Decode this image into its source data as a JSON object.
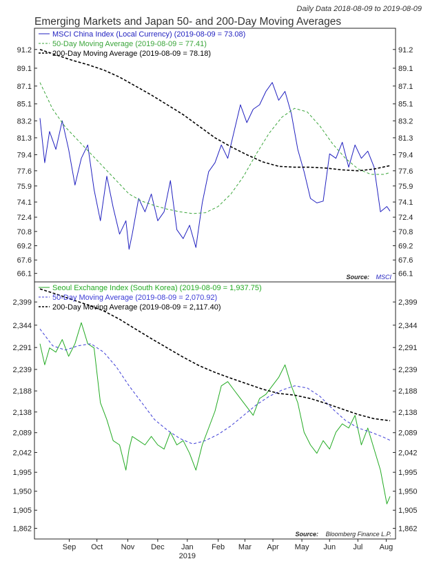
{
  "header": {
    "title": "Emerging Markets and Japan 50- and 200-Day Moving Averages",
    "subtitle": "Daily Data 2018-08-09 to 2019-08-09"
  },
  "colors": {
    "china": "#1f1fbf",
    "korea": "#22aa22",
    "ma50_green": "#3aa53a",
    "ma50_blue": "#3b3bd6",
    "ma200": "#000000",
    "frame": "#222222"
  },
  "x_axis": {
    "months": [
      {
        "label": "Sep",
        "t": 0.092
      },
      {
        "label": "Oct",
        "t": 0.179
      },
      {
        "label": "Nov",
        "t": 0.276
      },
      {
        "label": "Dec",
        "t": 0.37
      },
      {
        "label": "Jan",
        "t": 0.463
      },
      {
        "label": "Feb",
        "t": 0.56
      },
      {
        "label": "Mar",
        "t": 0.644
      },
      {
        "label": "Apr",
        "t": 0.732
      },
      {
        "label": "May",
        "t": 0.823
      },
      {
        "label": "Jun",
        "t": 0.91
      },
      {
        "label": "Jul",
        "t": 0.999
      },
      {
        "label": "Aug",
        "t": 1.088
      }
    ],
    "year_label": "2019"
  },
  "chart_data": [
    {
      "type": "line",
      "title": "MSCI China Index",
      "ylim": [
        65.3,
        93.5
      ],
      "yticks": [
        "91.2",
        "89.1",
        "87.1",
        "85.1",
        "83.2",
        "81.3",
        "79.4",
        "77.6",
        "75.9",
        "74.1",
        "72.4",
        "70.8",
        "69.2",
        "67.6",
        "66.1"
      ],
      "yvalues": [
        91.2,
        89.1,
        87.1,
        85.1,
        83.2,
        81.3,
        79.4,
        77.6,
        75.9,
        74.1,
        72.4,
        70.8,
        69.2,
        67.6,
        66.1
      ],
      "legend": [
        "MSCI China Index (Local Currency) (2019-08-09 = 73.08)",
        "50-Day Moving Average (2019-08-09 = 77.41)",
        "200-Day Moving Average (2019-08-09 = 78.18)"
      ],
      "source_label": "Source:",
      "source_value": "MSCI",
      "series": [
        {
          "name": "MSCI China Index",
          "style": "solid",
          "color": "#1f1fbf",
          "x": [
            0,
            0.015,
            0.03,
            0.05,
            0.07,
            0.09,
            0.11,
            0.13,
            0.15,
            0.17,
            0.19,
            0.21,
            0.23,
            0.25,
            0.27,
            0.28,
            0.29,
            0.31,
            0.33,
            0.35,
            0.37,
            0.39,
            0.41,
            0.43,
            0.45,
            0.47,
            0.49,
            0.51,
            0.53,
            0.55,
            0.57,
            0.59,
            0.61,
            0.63,
            0.65,
            0.67,
            0.69,
            0.71,
            0.73,
            0.75,
            0.77,
            0.79,
            0.81,
            0.83,
            0.85,
            0.87,
            0.89,
            0.91,
            0.93,
            0.95,
            0.97,
            0.99,
            1.01,
            1.03,
            1.05,
            1.07,
            1.09,
            1.1
          ],
          "y": [
            83.5,
            78.5,
            82.0,
            80.0,
            83.2,
            80.0,
            76.0,
            79.0,
            80.5,
            75.5,
            72.0,
            77.0,
            73.5,
            70.5,
            72.0,
            68.8,
            70.5,
            74.5,
            73.0,
            75.0,
            72.0,
            73.0,
            76.5,
            71.0,
            70.0,
            71.5,
            69.0,
            74.0,
            77.5,
            78.5,
            80.5,
            79.0,
            82.0,
            85.0,
            83.0,
            84.5,
            85.0,
            86.5,
            87.5,
            85.5,
            86.5,
            84.0,
            80.0,
            77.5,
            74.5,
            74.0,
            74.2,
            79.5,
            79.0,
            80.8,
            78.0,
            80.5,
            79.0,
            79.8,
            78.0,
            73.0,
            73.6,
            73.08
          ]
        },
        {
          "name": "50-Day Moving Average",
          "style": "dashed",
          "color": "#3aa53a",
          "x": [
            0,
            0.04,
            0.08,
            0.12,
            0.16,
            0.2,
            0.24,
            0.28,
            0.32,
            0.36,
            0.4,
            0.44,
            0.48,
            0.52,
            0.56,
            0.6,
            0.64,
            0.68,
            0.72,
            0.76,
            0.8,
            0.84,
            0.88,
            0.92,
            0.96,
            1.0,
            1.04,
            1.08,
            1.1
          ],
          "y": [
            87.5,
            84.5,
            82.5,
            81.0,
            79.5,
            78.0,
            76.5,
            75.0,
            74.2,
            73.7,
            73.3,
            73.0,
            72.8,
            72.9,
            73.6,
            75.0,
            77.0,
            79.5,
            81.8,
            83.6,
            84.6,
            84.2,
            82.6,
            80.6,
            79.0,
            77.8,
            77.2,
            77.2,
            77.41
          ]
        },
        {
          "name": "200-Day Moving Average",
          "style": "dashed",
          "color": "#000000",
          "x": [
            0,
            0.05,
            0.1,
            0.15,
            0.2,
            0.25,
            0.3,
            0.35,
            0.4,
            0.45,
            0.5,
            0.55,
            0.6,
            0.65,
            0.7,
            0.75,
            0.8,
            0.85,
            0.9,
            0.95,
            1.0,
            1.05,
            1.1
          ],
          "y": [
            91.2,
            90.6,
            90.0,
            89.5,
            88.9,
            88.1,
            87.1,
            86.1,
            85.0,
            83.9,
            82.6,
            81.3,
            80.3,
            79.4,
            78.6,
            78.1,
            78.0,
            78.0,
            77.9,
            77.7,
            77.6,
            77.8,
            78.18
          ]
        }
      ]
    },
    {
      "type": "line",
      "title": "Seoul Exchange Index (South Korea)",
      "ylim": [
        1840,
        2445
      ],
      "yticks": [
        "2,399",
        "2,344",
        "2,291",
        "2,239",
        "2,188",
        "2,138",
        "2,089",
        "2,042",
        "1,995",
        "1,950",
        "1,905",
        "1,862"
      ],
      "yvalues": [
        2399,
        2344,
        2291,
        2239,
        2188,
        2138,
        2089,
        2042,
        1995,
        1950,
        1905,
        1862
      ],
      "legend": [
        "Seoul Exchange Index (South Korea) (2019-08-09 = 1,937.75)",
        "50-Day Moving Average (2019-08-09 = 2,070.92)",
        "200-Day Moving Average (2019-08-09 = 2,117.40)"
      ],
      "source_label": "Source:",
      "source_value": "Bloomberg Finance L.P.",
      "series": [
        {
          "name": "Seoul Exchange Index",
          "style": "solid",
          "color": "#22aa22",
          "x": [
            0,
            0.015,
            0.03,
            0.05,
            0.07,
            0.09,
            0.11,
            0.13,
            0.15,
            0.17,
            0.19,
            0.21,
            0.23,
            0.25,
            0.27,
            0.28,
            0.29,
            0.31,
            0.33,
            0.35,
            0.37,
            0.39,
            0.41,
            0.43,
            0.45,
            0.47,
            0.49,
            0.51,
            0.53,
            0.55,
            0.57,
            0.59,
            0.61,
            0.63,
            0.65,
            0.67,
            0.69,
            0.71,
            0.73,
            0.75,
            0.77,
            0.79,
            0.81,
            0.83,
            0.85,
            0.87,
            0.89,
            0.91,
            0.93,
            0.95,
            0.97,
            0.99,
            1.01,
            1.03,
            1.05,
            1.07,
            1.09,
            1.1
          ],
          "y": [
            2300,
            2250,
            2290,
            2280,
            2310,
            2270,
            2300,
            2350,
            2300,
            2290,
            2160,
            2120,
            2070,
            2060,
            2000,
            2050,
            2080,
            2070,
            2060,
            2080,
            2060,
            2050,
            2090,
            2060,
            2070,
            2040,
            2000,
            2060,
            2100,
            2140,
            2200,
            2210,
            2190,
            2170,
            2150,
            2130,
            2170,
            2180,
            2200,
            2220,
            2250,
            2200,
            2160,
            2090,
            2060,
            2040,
            2070,
            2050,
            2090,
            2110,
            2100,
            2130,
            2060,
            2100,
            2050,
            2000,
            1920,
            1937.75
          ]
        },
        {
          "name": "50-Day Moving Average",
          "style": "dashed",
          "color": "#3b3bd6",
          "x": [
            0,
            0.04,
            0.08,
            0.12,
            0.16,
            0.2,
            0.24,
            0.28,
            0.32,
            0.36,
            0.4,
            0.44,
            0.48,
            0.52,
            0.56,
            0.6,
            0.64,
            0.68,
            0.72,
            0.76,
            0.8,
            0.84,
            0.88,
            0.92,
            0.96,
            1.0,
            1.04,
            1.08,
            1.1
          ],
          "y": [
            2335,
            2295,
            2285,
            2295,
            2300,
            2280,
            2245,
            2200,
            2160,
            2120,
            2095,
            2075,
            2062,
            2070,
            2085,
            2105,
            2130,
            2155,
            2175,
            2190,
            2200,
            2195,
            2175,
            2145,
            2118,
            2100,
            2090,
            2078,
            2070.92
          ]
        },
        {
          "name": "200-Day Moving Average",
          "style": "dashed",
          "color": "#000000",
          "x": [
            0,
            0.05,
            0.1,
            0.15,
            0.2,
            0.25,
            0.3,
            0.35,
            0.4,
            0.45,
            0.5,
            0.55,
            0.6,
            0.65,
            0.7,
            0.75,
            0.8,
            0.85,
            0.9,
            0.95,
            1.0,
            1.05,
            1.1
          ],
          "y": [
            2430,
            2418,
            2405,
            2392,
            2378,
            2358,
            2335,
            2312,
            2290,
            2268,
            2248,
            2232,
            2218,
            2205,
            2192,
            2182,
            2178,
            2170,
            2158,
            2145,
            2132,
            2122,
            2117.4
          ]
        }
      ]
    }
  ]
}
